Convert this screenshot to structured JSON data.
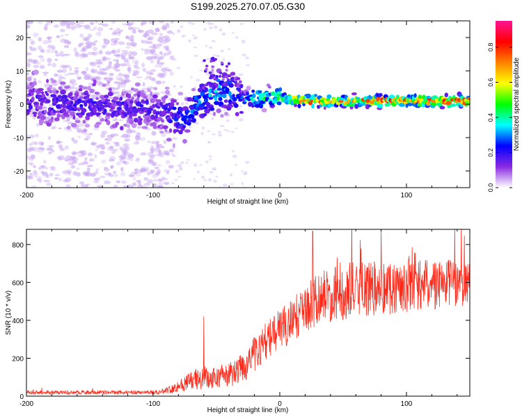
{
  "title": "S199.2025.270.07.05.G30",
  "chart_data": [
    {
      "type": "heatmap",
      "xlabel": "Height of straight line (km)",
      "ylabel": "Frequency (Hz)",
      "xlim": [
        -200,
        150
      ],
      "ylim": [
        -25,
        25
      ],
      "x_ticks": [
        -200,
        -100,
        0,
        100
      ],
      "y_ticks": [
        -20,
        -10,
        0,
        10,
        20
      ],
      "colorbar": {
        "label": "Normalized spectral amplitude",
        "range": [
          0,
          0.95
        ],
        "ticks": [
          "0.0",
          "0.2",
          "0.4",
          "0.6",
          "0.8"
        ],
        "colors": [
          "#ffffff",
          "#8a2be2",
          "#0000ff",
          "#00ffff",
          "#00ff00",
          "#ffff00",
          "#ff8000",
          "#ff0000",
          "#ff1493"
        ]
      },
      "ridge": [
        {
          "x": -200,
          "f": 1,
          "amp": 0.18
        },
        {
          "x": -160,
          "f": 0,
          "amp": 0.2
        },
        {
          "x": -120,
          "f": -1,
          "amp": 0.18
        },
        {
          "x": -90,
          "f": -2,
          "amp": 0.2
        },
        {
          "x": -75,
          "f": -5,
          "amp": 0.3
        },
        {
          "x": -65,
          "f": 0,
          "amp": 0.3
        },
        {
          "x": -50,
          "f": 4,
          "amp": 0.35
        },
        {
          "x": -40,
          "f": 4,
          "amp": 0.3
        },
        {
          "x": -30,
          "f": 1,
          "amp": 0.3
        },
        {
          "x": -15,
          "f": 2,
          "amp": 0.45
        },
        {
          "x": 0,
          "f": 2,
          "amp": 0.5
        },
        {
          "x": 20,
          "f": 1,
          "amp": 0.8
        },
        {
          "x": 50,
          "f": 1,
          "amp": 0.7
        },
        {
          "x": 80,
          "f": 1,
          "amp": 0.8
        },
        {
          "x": 110,
          "f": 1,
          "amp": 0.8
        },
        {
          "x": 150,
          "f": 1,
          "amp": 0.8
        }
      ]
    },
    {
      "type": "line",
      "xlabel": "Height of straight line (km)",
      "ylabel": "SNR (10 * v/v)",
      "xlim": [
        -200,
        150
      ],
      "ylim": [
        0,
        880
      ],
      "x_ticks": [
        -200,
        -100,
        0,
        100
      ],
      "y_ticks": [
        0,
        200,
        400,
        600,
        800
      ],
      "color": "#ff2a1a",
      "envelope": [
        {
          "x": -200,
          "mean": 20,
          "spread": 10
        },
        {
          "x": -95,
          "mean": 20,
          "spread": 10
        },
        {
          "x": -85,
          "mean": 40,
          "spread": 25
        },
        {
          "x": -70,
          "mean": 80,
          "spread": 50
        },
        {
          "x": -50,
          "mean": 100,
          "spread": 60
        },
        {
          "x": -35,
          "mean": 120,
          "spread": 70
        },
        {
          "x": -25,
          "mean": 180,
          "spread": 90
        },
        {
          "x": -10,
          "mean": 300,
          "spread": 100
        },
        {
          "x": 10,
          "mean": 400,
          "spread": 120
        },
        {
          "x": 30,
          "mean": 520,
          "spread": 140
        },
        {
          "x": 60,
          "mean": 560,
          "spread": 150
        },
        {
          "x": 100,
          "mean": 580,
          "spread": 140
        },
        {
          "x": 150,
          "mean": 600,
          "spread": 120
        }
      ],
      "peak_spikes": [
        {
          "x": -60,
          "y": 420
        },
        {
          "x": 26,
          "y": 870
        },
        {
          "x": 80,
          "y": 880
        }
      ]
    }
  ]
}
